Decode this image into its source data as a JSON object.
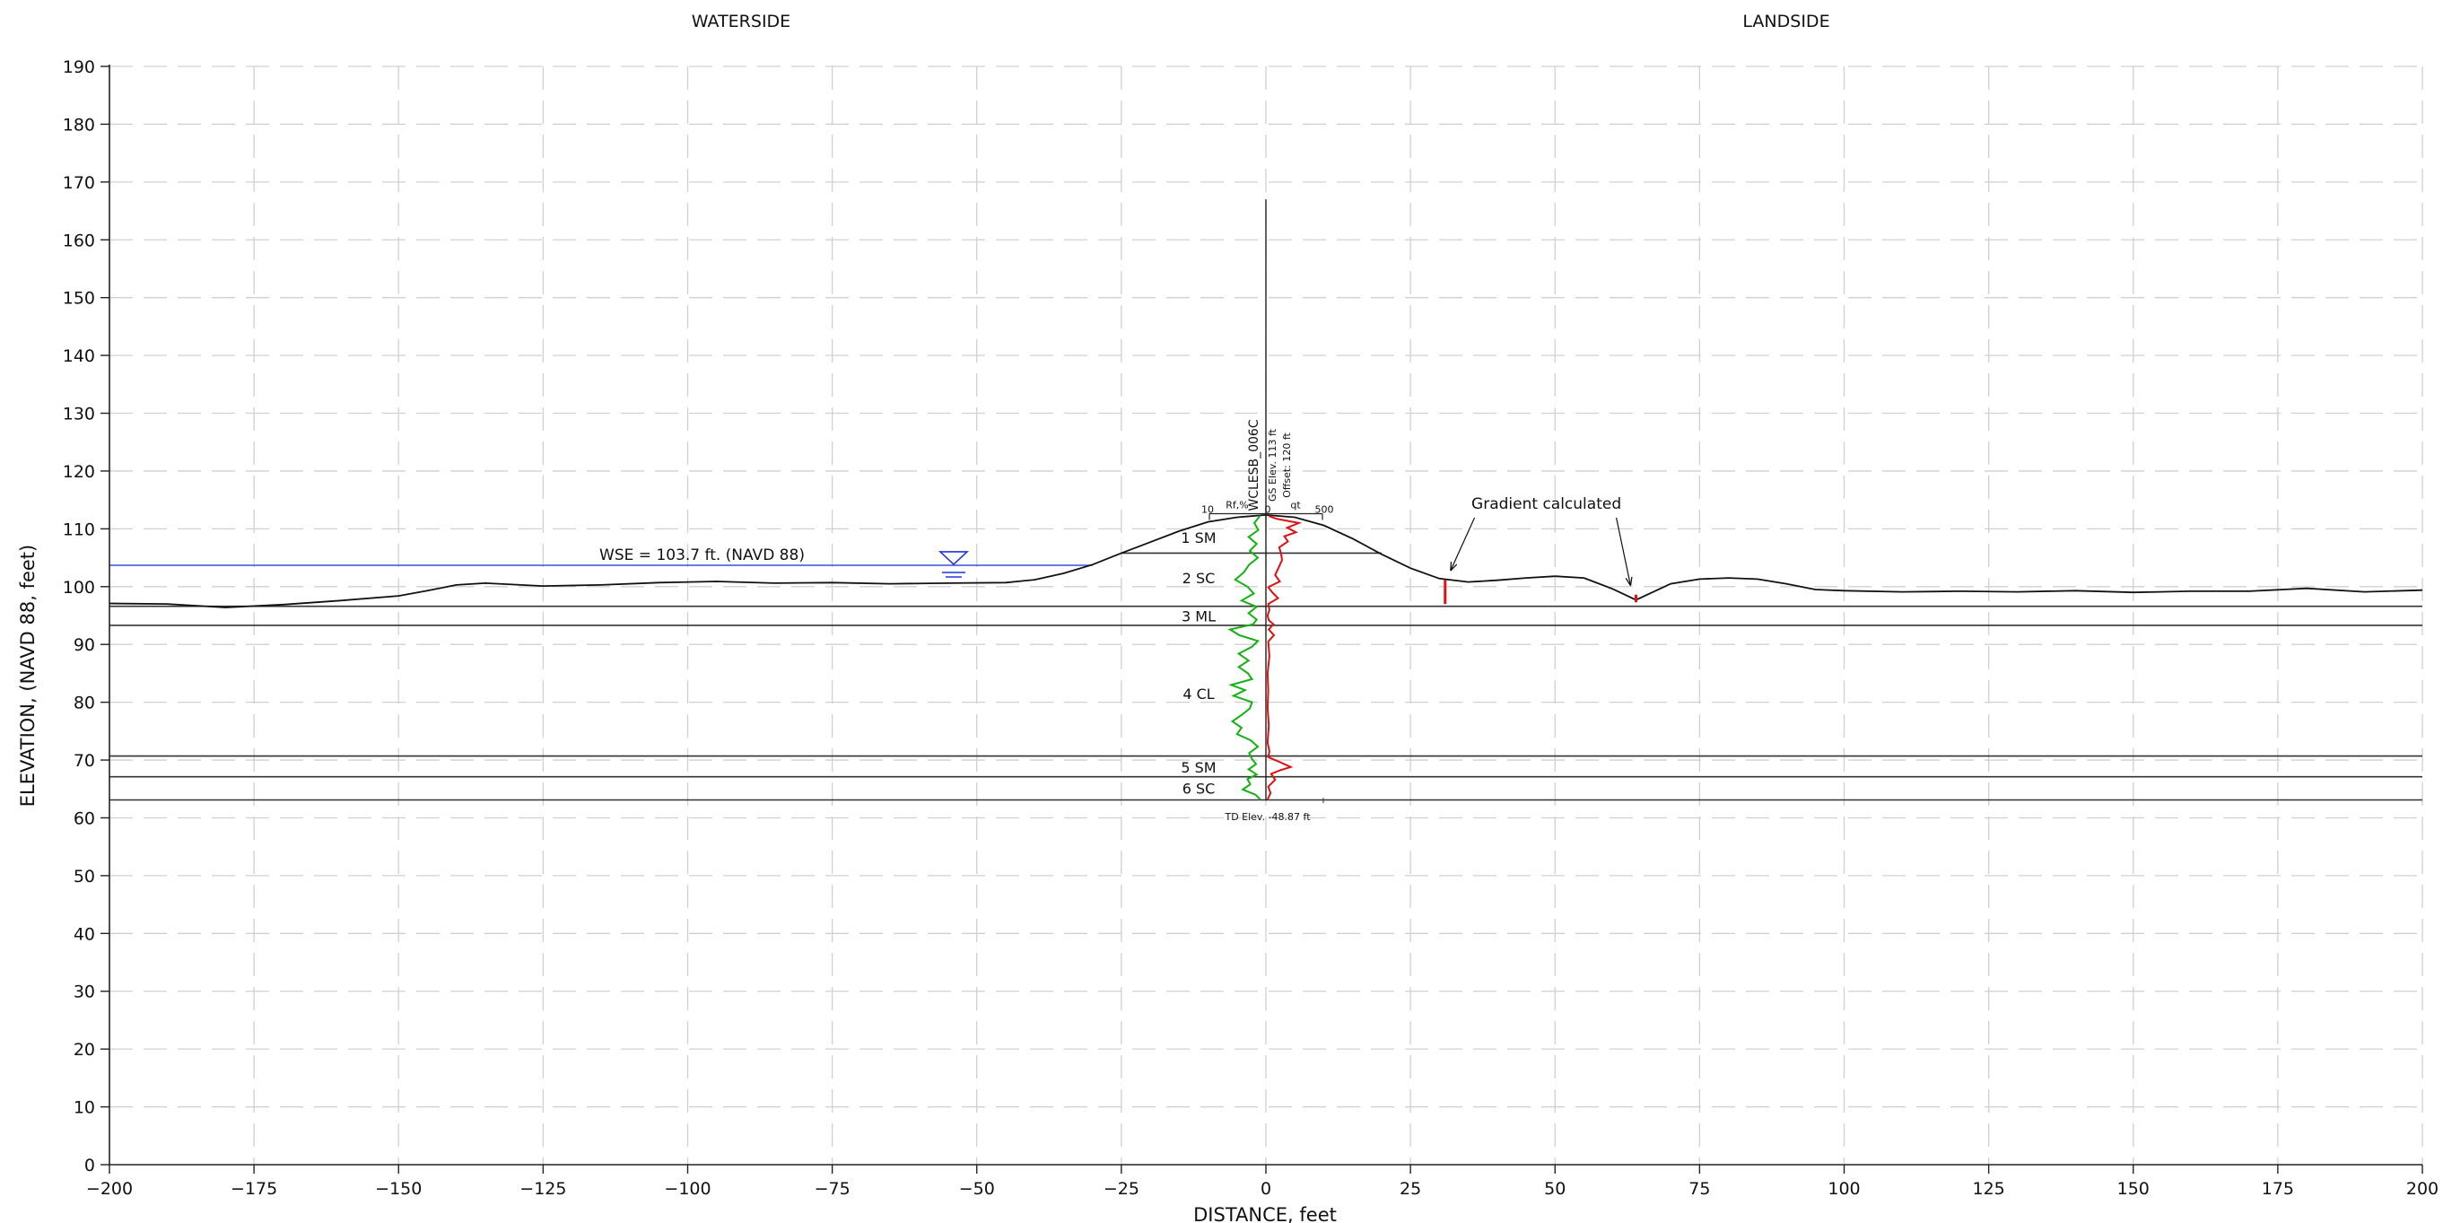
{
  "side_labels": {
    "left": "WATERSIDE",
    "right": "LANDSIDE"
  },
  "axes": {
    "xlabel": "DISTANCE, feet",
    "ylabel": "ELEVATION, (NAVD 88, feet)"
  },
  "chart_data": {
    "type": "line",
    "xlim": [
      -200,
      200
    ],
    "ylim": [
      0,
      190
    ],
    "x_ticks": [
      -200,
      -175,
      -150,
      -125,
      -100,
      -75,
      -50,
      -25,
      0,
      25,
      50,
      75,
      100,
      125,
      150,
      175,
      200
    ],
    "y_ticks": [
      0,
      10,
      20,
      30,
      40,
      50,
      60,
      70,
      80,
      90,
      100,
      110,
      120,
      130,
      140,
      150,
      160,
      170,
      180,
      190
    ],
    "x_tick_labels": [
      "−200",
      "−175",
      "−150",
      "−125",
      "−100",
      "−75",
      "−50",
      "−25",
      "0",
      "25",
      "50",
      "75",
      "100",
      "125",
      "150",
      "175",
      "200"
    ],
    "y_tick_labels": [
      "0",
      "10",
      "20",
      "30",
      "40",
      "50",
      "60",
      "70",
      "80",
      "90",
      "100",
      "110",
      "120",
      "130",
      "140",
      "150",
      "160",
      "170",
      "180",
      "190"
    ],
    "grid": true,
    "ground_profile": [
      [
        -200,
        97.1
      ],
      [
        -190,
        97.0
      ],
      [
        -180,
        96.4
      ],
      [
        -170,
        96.9
      ],
      [
        -160,
        97.6
      ],
      [
        -150,
        98.4
      ],
      [
        -145,
        99.3
      ],
      [
        -140,
        100.3
      ],
      [
        -135,
        100.6
      ],
      [
        -125,
        100.1
      ],
      [
        -115,
        100.3
      ],
      [
        -105,
        100.7
      ],
      [
        -95,
        100.9
      ],
      [
        -85,
        100.6
      ],
      [
        -75,
        100.7
      ],
      [
        -65,
        100.5
      ],
      [
        -55,
        100.6
      ],
      [
        -45,
        100.7
      ],
      [
        -40,
        101.2
      ],
      [
        -35,
        102.3
      ],
      [
        -30,
        103.8
      ],
      [
        -25,
        105.8
      ],
      [
        -20,
        107.7
      ],
      [
        -15,
        109.6
      ],
      [
        -10,
        111.2
      ],
      [
        -5,
        112.0
      ],
      [
        0,
        112.4
      ],
      [
        5,
        112.0
      ],
      [
        10,
        110.6
      ],
      [
        15,
        108.3
      ],
      [
        20,
        105.6
      ],
      [
        25,
        103.2
      ],
      [
        30,
        101.4
      ],
      [
        35,
        100.8
      ],
      [
        40,
        101.1
      ],
      [
        45,
        101.5
      ],
      [
        50,
        101.8
      ],
      [
        55,
        101.5
      ],
      [
        60,
        99.6
      ],
      [
        64,
        97.7
      ],
      [
        70,
        100.5
      ],
      [
        75,
        101.3
      ],
      [
        80,
        101.5
      ],
      [
        85,
        101.3
      ],
      [
        90,
        100.5
      ],
      [
        95,
        99.5
      ],
      [
        100,
        99.3
      ],
      [
        110,
        99.1
      ],
      [
        120,
        99.2
      ],
      [
        130,
        99.1
      ],
      [
        140,
        99.3
      ],
      [
        150,
        99.0
      ],
      [
        160,
        99.2
      ],
      [
        170,
        99.2
      ],
      [
        180,
        99.7
      ],
      [
        190,
        99.1
      ],
      [
        200,
        99.4
      ]
    ],
    "water_surface": {
      "label": "WSE = 103.7 ft. (NAVD 88)",
      "elevation": 103.7,
      "x_start": -200,
      "x_end": -30,
      "marker_x": -54
    },
    "layer_boundaries": [
      {
        "elevation": 105.8,
        "x_start": -25,
        "x_end": 20
      },
      {
        "elevation": 96.6,
        "x_start": -200,
        "x_end": 200
      },
      {
        "elevation": 93.3,
        "x_start": -200,
        "x_end": 200
      },
      {
        "elevation": 70.7,
        "x_start": -200,
        "x_end": 200
      },
      {
        "elevation": 67.1,
        "x_start": -200,
        "x_end": 200
      },
      {
        "elevation": 63.1,
        "x_start": -200,
        "x_end": 200
      }
    ],
    "layers": [
      {
        "label": "1 SM",
        "elevation": 108.5
      },
      {
        "label": "2 SC",
        "elevation": 101.5
      },
      {
        "label": "3 ML",
        "elevation": 94.9
      },
      {
        "label": "4 CL",
        "elevation": 81.5
      },
      {
        "label": "5 SM",
        "elevation": 68.8
      },
      {
        "label": "6 SC",
        "elevation": 65.1
      }
    ],
    "boring": {
      "name": "WCLESB_006C",
      "gs_elev": "GS Elev. 113  ft",
      "offset": "Offset: 120 ft",
      "td_elev": "TD Elev. -48.87 ft",
      "x": 0,
      "top": 167,
      "bottom": 63,
      "scale_left_value": "10",
      "scale_left_name": "Rf,%",
      "scale_zero": "0",
      "scale_right_name": "qt",
      "scale_right_value": "500",
      "friction_ratio_trace": [
        [
          -1.0,
          112.3
        ],
        [
          -2.0,
          111.0
        ],
        [
          -1.3,
          109.8
        ],
        [
          -3.0,
          108.6
        ],
        [
          -1.6,
          107.4
        ],
        [
          -2.8,
          106.2
        ],
        [
          -1.4,
          105.0
        ],
        [
          -2.9,
          103.8
        ],
        [
          -3.8,
          102.5
        ],
        [
          -5.3,
          101.2
        ],
        [
          -3.2,
          100.0
        ],
        [
          -2.1,
          98.8
        ],
        [
          -4.2,
          97.6
        ],
        [
          -1.6,
          96.5
        ],
        [
          -3.0,
          95.4
        ],
        [
          -1.6,
          94.3
        ],
        [
          -2.2,
          93.5
        ],
        [
          -6.2,
          92.6
        ],
        [
          -4.6,
          91.6
        ],
        [
          -1.4,
          90.6
        ],
        [
          -2.4,
          89.6
        ],
        [
          -4.7,
          88.4
        ],
        [
          -3.0,
          87.2
        ],
        [
          -4.7,
          86.1
        ],
        [
          -3.1,
          85.0
        ],
        [
          -2.4,
          84.0
        ],
        [
          -6.0,
          83.0
        ],
        [
          -3.6,
          82.1
        ],
        [
          -5.6,
          81.1
        ],
        [
          -2.4,
          80.0
        ],
        [
          -2.8,
          78.9
        ],
        [
          -4.2,
          77.8
        ],
        [
          -5.8,
          76.7
        ],
        [
          -4.2,
          75.6
        ],
        [
          -5.0,
          74.5
        ],
        [
          -2.6,
          73.4
        ],
        [
          -1.4,
          72.3
        ],
        [
          -2.9,
          71.2
        ],
        [
          -2.4,
          70.2
        ],
        [
          -1.7,
          69.3
        ],
        [
          -3.0,
          68.4
        ],
        [
          -1.6,
          67.5
        ],
        [
          -3.2,
          66.7
        ],
        [
          -2.7,
          65.8
        ],
        [
          -4.0,
          64.9
        ],
        [
          -1.8,
          64.0
        ],
        [
          -1.0,
          63.2
        ]
      ],
      "tip_resistance_trace": [
        [
          0.5,
          112.2
        ],
        [
          2.0,
          111.7
        ],
        [
          5.7,
          111.0
        ],
        [
          3.7,
          110.2
        ],
        [
          5.2,
          109.4
        ],
        [
          3.2,
          108.7
        ],
        [
          3.8,
          107.8
        ],
        [
          2.3,
          106.8
        ],
        [
          2.6,
          105.8
        ],
        [
          2.8,
          104.6
        ],
        [
          2.2,
          103.3
        ],
        [
          1.6,
          102.0
        ],
        [
          2.4,
          100.9
        ],
        [
          0.4,
          99.9
        ],
        [
          1.1,
          99.0
        ],
        [
          2.1,
          98.0
        ],
        [
          0.4,
          97.0
        ],
        [
          0.6,
          96.0
        ],
        [
          0.3,
          95.0
        ],
        [
          0.5,
          94.2
        ],
        [
          1.3,
          93.5
        ],
        [
          0.5,
          92.6
        ],
        [
          1.4,
          91.6
        ],
        [
          0.4,
          90.5
        ],
        [
          0.6,
          88.0
        ],
        [
          0.3,
          85.0
        ],
        [
          0.4,
          82.0
        ],
        [
          0.3,
          79.0
        ],
        [
          0.5,
          76.0
        ],
        [
          0.3,
          73.0
        ],
        [
          0.6,
          71.5
        ],
        [
          0.4,
          70.5
        ],
        [
          2.5,
          69.6
        ],
        [
          4.3,
          68.8
        ],
        [
          2.4,
          68.2
        ],
        [
          0.9,
          67.6
        ],
        [
          1.6,
          66.6
        ],
        [
          0.4,
          65.4
        ],
        [
          0.8,
          64.3
        ],
        [
          0.3,
          63.2
        ]
      ]
    },
    "gradient_annotation": {
      "label": "Gradient calculated",
      "points": [
        {
          "x": 31,
          "from": 97,
          "to": 101.2
        },
        {
          "x": 64,
          "from": 97.3,
          "to": 98.6
        }
      ]
    }
  }
}
